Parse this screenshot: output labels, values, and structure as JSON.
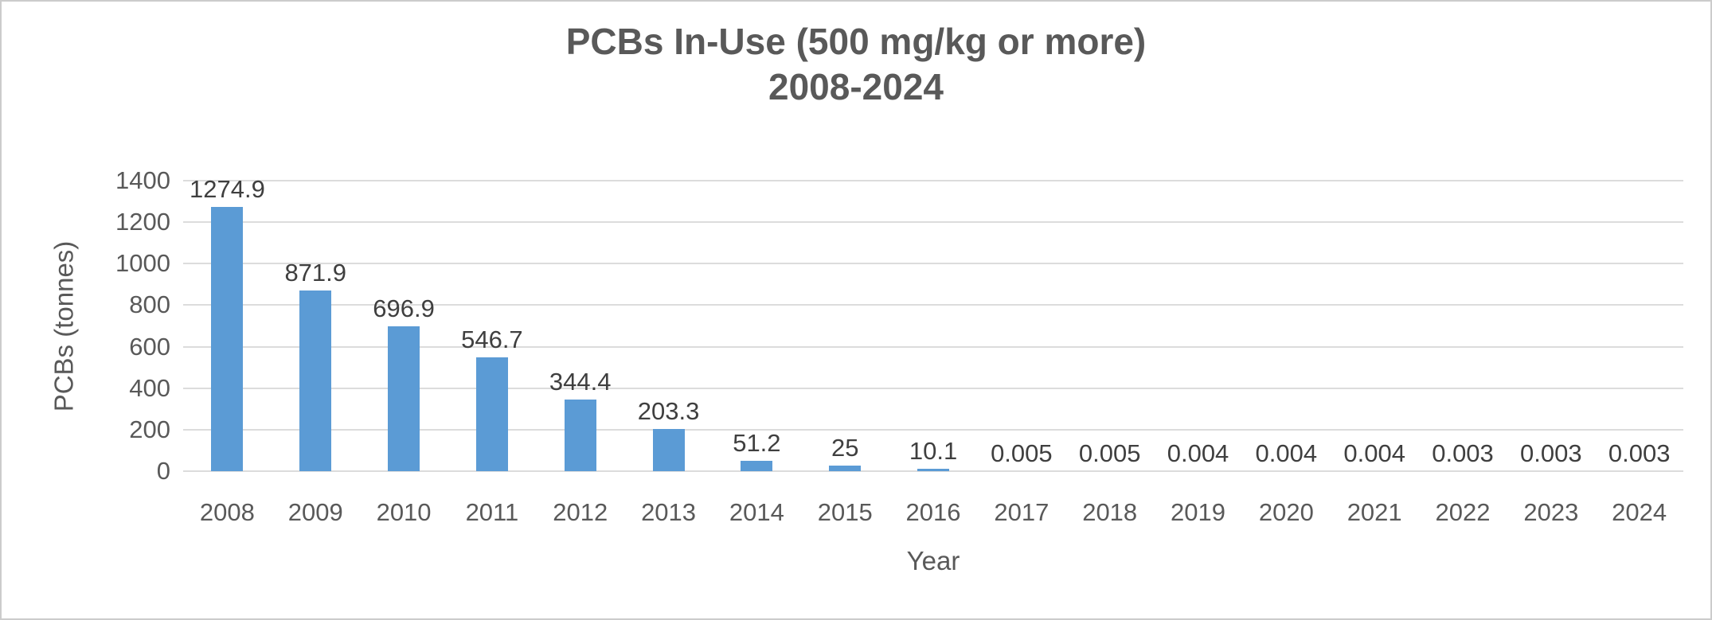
{
  "chart": {
    "title_line1": "PCBs In-Use (500 mg/kg or more)",
    "title_line2": "2008-2024",
    "ylabel": "PCBs (tonnes)",
    "xlabel": "Year"
  },
  "chart_data": {
    "type": "bar",
    "title": "PCBs In-Use (500 mg/kg or more) 2008-2024",
    "xlabel": "Year",
    "ylabel": "PCBs (tonnes)",
    "categories": [
      "2008",
      "2009",
      "2010",
      "2011",
      "2012",
      "2013",
      "2014",
      "2015",
      "2016",
      "2017",
      "2018",
      "2019",
      "2020",
      "2021",
      "2022",
      "2023",
      "2024"
    ],
    "values": [
      1274.9,
      871.9,
      696.9,
      546.7,
      344.4,
      203.3,
      51.2,
      25,
      10.1,
      0.005,
      0.005,
      0.004,
      0.004,
      0.004,
      0.003,
      0.003,
      0.003
    ],
    "value_labels": [
      "1274.9",
      "871.9",
      "696.9",
      "546.7",
      "344.4",
      "203.3",
      "51.2",
      "25",
      "10.1",
      "0.005",
      "0.005",
      "0.004",
      "0.004",
      "0.004",
      "0.003",
      "0.003",
      "0.003"
    ],
    "ylim": [
      0,
      1400
    ],
    "y_ticks": [
      0,
      200,
      400,
      600,
      800,
      1000,
      1200,
      1400
    ],
    "grid": true,
    "legend": false,
    "bar_color": "#5B9BD5",
    "gridline_color": "#DCDCDC",
    "axis_text_color": "#595959",
    "data_label_color": "#3F3F3F",
    "title_color": "#595959"
  }
}
